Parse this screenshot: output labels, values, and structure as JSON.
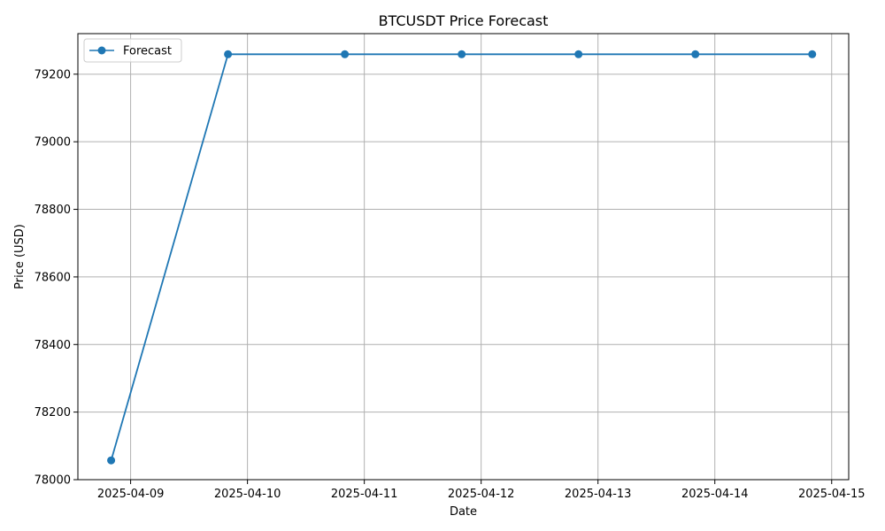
{
  "chart_data": {
    "type": "line",
    "title": "BTCUSDT Price Forecast",
    "xlabel": "Date",
    "ylabel": "Price (USD)",
    "x_tick_labels": [
      "2025-04-09",
      "2025-04-10",
      "2025-04-11",
      "2025-04-12",
      "2025-04-13",
      "2025-04-14",
      "2025-04-15"
    ],
    "y_tick_labels": [
      "78000",
      "78200",
      "78400",
      "78600",
      "78800",
      "79000",
      "79200"
    ],
    "ylim": [
      78000,
      79320
    ],
    "xlim": [
      "2025-04-08T13:10",
      "2025-04-15T03:30"
    ],
    "grid": true,
    "legend_position": "upper-left",
    "series": [
      {
        "name": "Forecast",
        "color": "#1f77b4",
        "marker": "circle",
        "x": [
          "2025-04-08T20:00",
          "2025-04-09T20:00",
          "2025-04-10T20:00",
          "2025-04-11T20:00",
          "2025-04-12T20:00",
          "2025-04-13T20:00",
          "2025-04-14T20:00"
        ],
        "values": [
          78057,
          79259,
          79259,
          79259,
          79259,
          79259,
          79259
        ]
      }
    ]
  }
}
